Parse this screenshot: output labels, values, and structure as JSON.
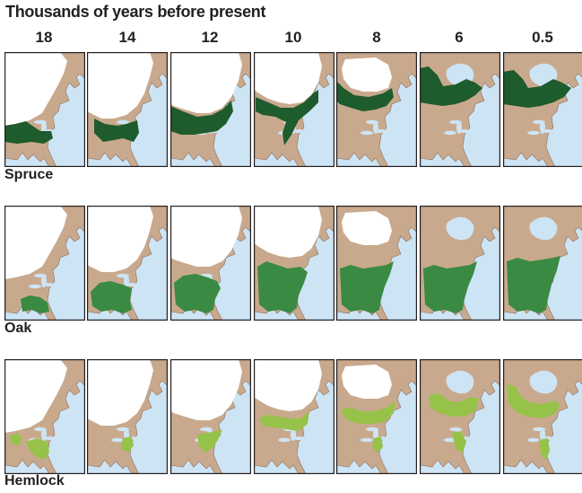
{
  "title": "Thousands of years before present",
  "time_labels": [
    "18",
    "14",
    "12",
    "10",
    "8",
    "6",
    "0.5"
  ],
  "rows": [
    {
      "label": "Spruce",
      "key": "spruce",
      "color": "#1e5b2d"
    },
    {
      "label": "Oak",
      "key": "oak",
      "color": "#3a8a43"
    },
    {
      "label": "Hemlock",
      "key": "hemlock",
      "color": "#97c24a"
    }
  ],
  "colors": {
    "ocean": "#cde4f5",
    "land": "#c9a98d",
    "ice": "#ffffff",
    "frame": "#231f20",
    "coast": "#8a7060"
  }
}
